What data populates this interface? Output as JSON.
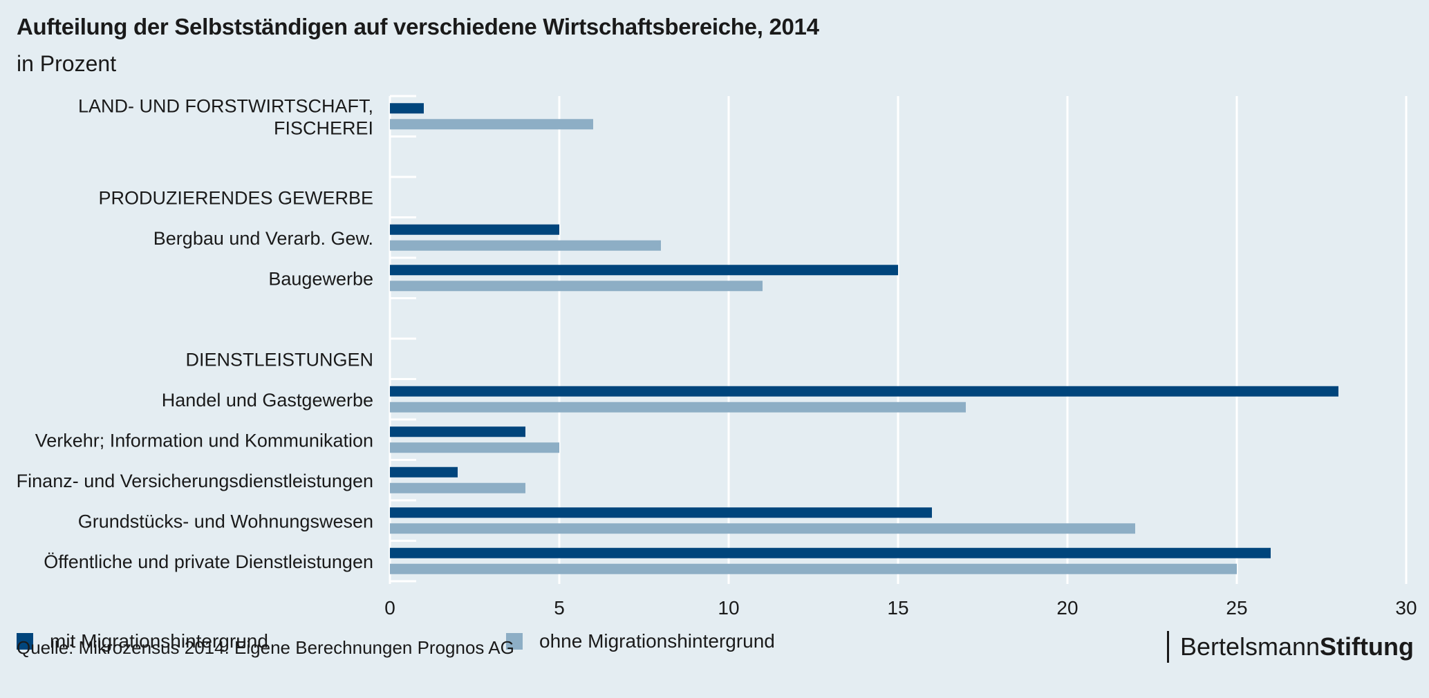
{
  "title": "Aufteilung der Selbstständigen auf verschiedene Wirtschaftsbereiche, 2014",
  "subtitle": "in Prozent",
  "source": "Quelle: Mikrozensus 2014. Eigene Berechnungen Prognos AG",
  "brand": {
    "part1": "Bertelsmann",
    "part2": "Stiftung"
  },
  "colors": {
    "series1": "#00457c",
    "series2": "#8daec5",
    "background": "#e4edf2",
    "grid": "#ffffff"
  },
  "chart_data": {
    "type": "bar",
    "orientation": "horizontal",
    "categories": [
      "LAND- UND FORSTWIRTSCHAFT,\nFISCHEREI",
      "",
      "PRODUZIERENDES GEWERBE",
      "Bergbau und Verarb. Gew.",
      "Baugewerbe",
      "",
      "DIENSTLEISTUNGEN",
      "Handel und Gastgewerbe",
      "Verkehr;  Information und Kommunikation",
      "Finanz- und Versicherungsdienstleistungen",
      "Grundstücks- und Wohnungswesen",
      "Öffentliche und private Dienstleistungen"
    ],
    "series": [
      {
        "name": "mit Migrationshintergrund",
        "color": "#00457c",
        "values": [
          1,
          null,
          null,
          5,
          15,
          null,
          null,
          28,
          4,
          2,
          16,
          26
        ]
      },
      {
        "name": "ohne Migrationshintergrund",
        "color": "#8daec5",
        "values": [
          6,
          null,
          null,
          8,
          11,
          null,
          null,
          17,
          5,
          4,
          22,
          25
        ]
      }
    ],
    "xlim": [
      0,
      30
    ],
    "xticks": [
      0,
      5,
      10,
      15,
      20,
      25,
      30
    ],
    "grid": true,
    "legend": "bottom-left"
  }
}
